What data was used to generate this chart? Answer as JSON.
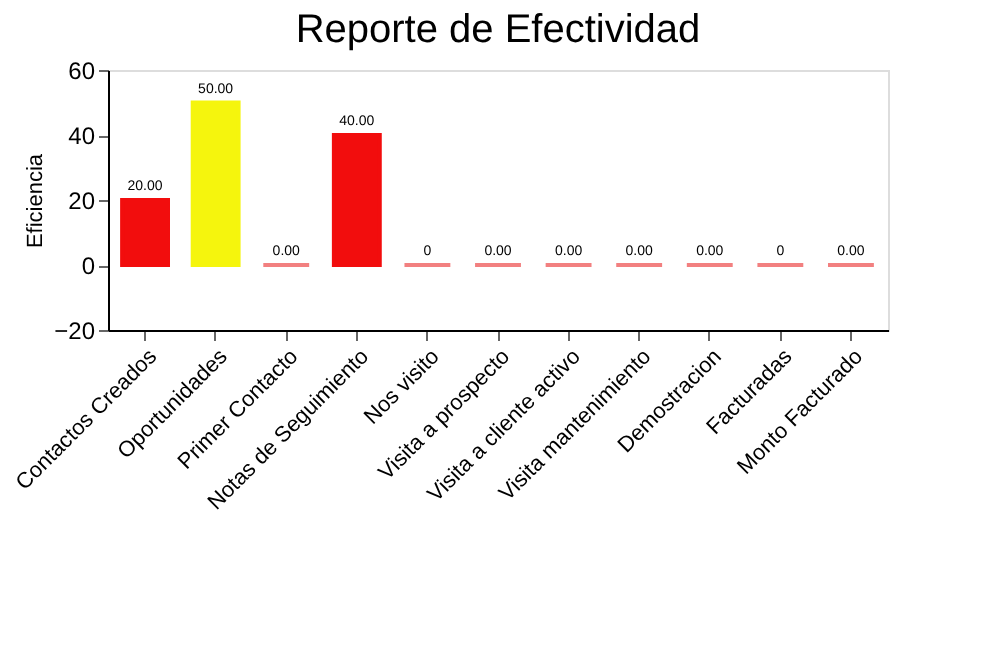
{
  "chart_data": {
    "type": "bar",
    "title": "Reporte de Efectividad",
    "ylabel": "Eficiencia",
    "categories": [
      "Contactos Creados",
      "Oportunidades",
      "Primer Contacto",
      "Notas de Seguimiento",
      "Nos visito",
      "Visita a prospecto",
      "Visita a cliente activo",
      "Visita mantenimiento",
      "Demostracion",
      "Facturadas",
      "Monto Facturado"
    ],
    "values": [
      20,
      50,
      0,
      40,
      0,
      0,
      0,
      0,
      0,
      0,
      0
    ],
    "value_labels": [
      "20.00",
      "50.00",
      "0.00",
      "40.00",
      "0",
      "0.00",
      "0.00",
      "0.00",
      "0.00",
      "0",
      "0.00"
    ],
    "colors": [
      "#f20d0d",
      "#f5f50d",
      "#f28080",
      "#f20d0d",
      "#f28080",
      "#f28080",
      "#f28080",
      "#f28080",
      "#f28080",
      "#f28080",
      "#f28080"
    ],
    "ylim": [
      -20,
      60
    ],
    "yticks": [
      -20,
      0,
      20,
      40,
      60
    ],
    "grid": false
  }
}
